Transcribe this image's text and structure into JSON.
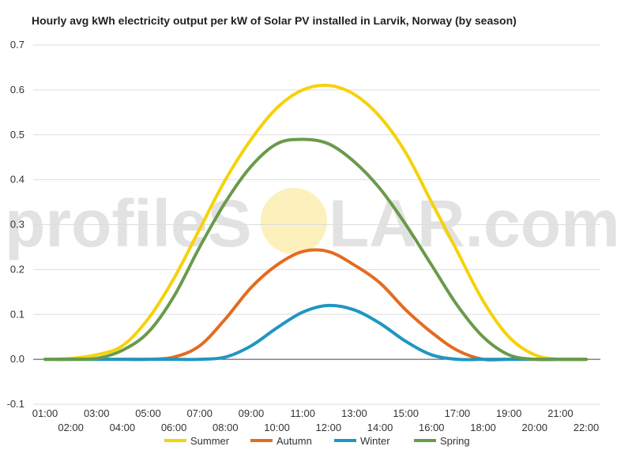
{
  "chart_data": {
    "type": "line",
    "title": "Hourly avg kWh electricity output per kW of Solar PV installed in Larvik, Norway (by season)",
    "xlabel": "",
    "ylabel": "",
    "ylim": [
      -0.1,
      0.7
    ],
    "yticks": [
      -0.1,
      0.0,
      0.1,
      0.2,
      0.3,
      0.4,
      0.5,
      0.6,
      0.7
    ],
    "x": [
      "01:00",
      "02:00",
      "03:00",
      "04:00",
      "05:00",
      "06:00",
      "07:00",
      "08:00",
      "09:00",
      "10:00",
      "11:00",
      "12:00",
      "13:00",
      "14:00",
      "15:00",
      "16:00",
      "17:00",
      "18:00",
      "19:00",
      "20:00",
      "21:00",
      "22:00"
    ],
    "grid": true,
    "legend": "bottom",
    "series": [
      {
        "name": "Summer",
        "color": "#f5d20a",
        "values": [
          0.0,
          0.002,
          0.01,
          0.03,
          0.09,
          0.18,
          0.29,
          0.4,
          0.49,
          0.56,
          0.6,
          0.61,
          0.59,
          0.54,
          0.46,
          0.35,
          0.24,
          0.13,
          0.05,
          0.01,
          0.0,
          0.0
        ]
      },
      {
        "name": "Autumn",
        "color": "#e36c21",
        "values": [
          0.0,
          0.0,
          0.0,
          0.0,
          0.0,
          0.005,
          0.03,
          0.09,
          0.16,
          0.21,
          0.24,
          0.24,
          0.21,
          0.17,
          0.11,
          0.06,
          0.02,
          0.0,
          0.0,
          0.0,
          0.0,
          0.0
        ]
      },
      {
        "name": "Winter",
        "color": "#1f96c2",
        "values": [
          0.0,
          0.0,
          0.0,
          0.0,
          0.0,
          0.0,
          0.0,
          0.005,
          0.03,
          0.07,
          0.105,
          0.12,
          0.11,
          0.08,
          0.04,
          0.01,
          0.0,
          0.0,
          0.0,
          0.0,
          0.0,
          0.0
        ]
      },
      {
        "name": "Spring",
        "color": "#6a9a4b",
        "values": [
          0.0,
          0.0,
          0.002,
          0.02,
          0.06,
          0.14,
          0.25,
          0.35,
          0.43,
          0.48,
          0.49,
          0.48,
          0.44,
          0.38,
          0.3,
          0.21,
          0.12,
          0.05,
          0.01,
          0.0,
          0.0,
          0.0
        ]
      }
    ]
  },
  "watermark": {
    "left": "profileS",
    "right": "LAR.com",
    "sun_color": "#fbeeb0"
  }
}
